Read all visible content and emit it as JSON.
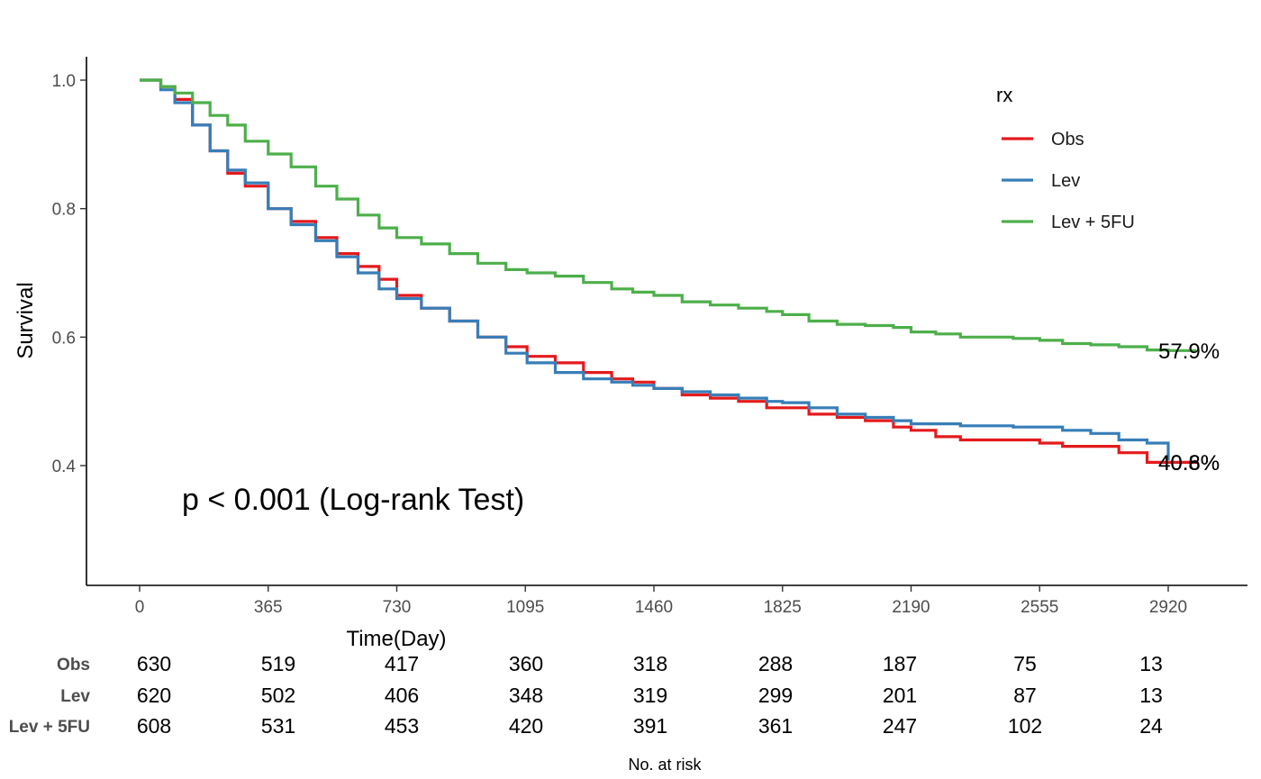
{
  "chart_data": {
    "type": "line",
    "xlabel": "Time(Day)",
    "ylabel": "Survival",
    "xlim": [
      0,
      3000
    ],
    "ylim": [
      0.22,
      1.03
    ],
    "x_ticks": [
      0,
      365,
      730,
      1095,
      1460,
      1825,
      2190,
      2555,
      2920
    ],
    "x_tick_labels": [
      "0",
      "365",
      "730",
      "1095",
      "1460",
      "1825",
      "2190",
      "2555",
      "2920"
    ],
    "y_ticks": [
      0.4,
      0.6,
      0.8,
      1.0
    ],
    "y_tick_labels": [
      "0.4",
      "0.6",
      "0.8",
      "1.0"
    ],
    "grid": false,
    "legend": {
      "title": "rx",
      "placement": "top-right",
      "entries": [
        "Obs",
        "Lev",
        "Lev + 5FU"
      ]
    },
    "annotation": "p < 0.001 (Log-rank Test)",
    "series": [
      {
        "name": "Obs",
        "color": "#E41A1C",
        "end_label": "40.6%",
        "x": [
          0,
          60,
          100,
          150,
          200,
          250,
          300,
          365,
          430,
          500,
          560,
          620,
          680,
          730,
          800,
          880,
          960,
          1040,
          1100,
          1180,
          1260,
          1340,
          1400,
          1460,
          1540,
          1620,
          1700,
          1780,
          1825,
          1900,
          1980,
          2060,
          2140,
          2190,
          2260,
          2330,
          2400,
          2480,
          2555,
          2620,
          2700,
          2780,
          2860,
          2920,
          3000
        ],
        "y": [
          1.0,
          0.99,
          0.97,
          0.93,
          0.89,
          0.855,
          0.835,
          0.8,
          0.78,
          0.755,
          0.73,
          0.71,
          0.69,
          0.665,
          0.645,
          0.625,
          0.6,
          0.585,
          0.57,
          0.56,
          0.545,
          0.535,
          0.53,
          0.52,
          0.51,
          0.505,
          0.5,
          0.49,
          0.49,
          0.48,
          0.475,
          0.47,
          0.46,
          0.455,
          0.445,
          0.44,
          0.44,
          0.44,
          0.435,
          0.43,
          0.43,
          0.42,
          0.405,
          0.405,
          0.405
        ]
      },
      {
        "name": "Lev",
        "color": "#377EB8",
        "end_label": "40.8%",
        "x": [
          0,
          60,
          100,
          150,
          200,
          250,
          300,
          365,
          430,
          500,
          560,
          620,
          680,
          730,
          800,
          880,
          960,
          1040,
          1100,
          1180,
          1260,
          1340,
          1400,
          1460,
          1540,
          1620,
          1700,
          1780,
          1825,
          1900,
          1980,
          2060,
          2140,
          2190,
          2260,
          2330,
          2400,
          2480,
          2555,
          2620,
          2700,
          2780,
          2860,
          2910,
          2920
        ],
        "y": [
          1.0,
          0.985,
          0.965,
          0.93,
          0.89,
          0.86,
          0.84,
          0.8,
          0.775,
          0.75,
          0.725,
          0.7,
          0.675,
          0.66,
          0.645,
          0.625,
          0.6,
          0.575,
          0.56,
          0.545,
          0.535,
          0.53,
          0.525,
          0.52,
          0.515,
          0.51,
          0.505,
          0.5,
          0.498,
          0.49,
          0.48,
          0.475,
          0.47,
          0.465,
          0.465,
          0.462,
          0.462,
          0.46,
          0.46,
          0.455,
          0.45,
          0.44,
          0.435,
          0.435,
          0.408
        ]
      },
      {
        "name": "Lev + 5FU",
        "color": "#4DAF4A",
        "end_label": "57.9%",
        "x": [
          0,
          60,
          100,
          150,
          200,
          250,
          300,
          365,
          430,
          500,
          560,
          620,
          680,
          730,
          800,
          880,
          960,
          1040,
          1100,
          1180,
          1260,
          1340,
          1400,
          1460,
          1540,
          1620,
          1700,
          1780,
          1825,
          1900,
          1980,
          2060,
          2140,
          2190,
          2260,
          2330,
          2400,
          2480,
          2555,
          2620,
          2700,
          2780,
          2860,
          2920,
          3000
        ],
        "y": [
          1.0,
          0.99,
          0.98,
          0.965,
          0.945,
          0.93,
          0.905,
          0.885,
          0.865,
          0.835,
          0.815,
          0.79,
          0.77,
          0.755,
          0.745,
          0.73,
          0.715,
          0.705,
          0.7,
          0.695,
          0.685,
          0.675,
          0.67,
          0.665,
          0.655,
          0.65,
          0.645,
          0.64,
          0.635,
          0.625,
          0.62,
          0.618,
          0.615,
          0.608,
          0.605,
          0.6,
          0.6,
          0.598,
          0.595,
          0.59,
          0.588,
          0.585,
          0.58,
          0.579,
          0.579
        ]
      }
    ],
    "risk_table": {
      "title": "No. at risk",
      "times": [
        0,
        365,
        730,
        1095,
        1460,
        1825,
        2190,
        2555,
        2920
      ],
      "rows": [
        {
          "name": "Obs",
          "values": [
            "630",
            "519",
            "417",
            "360",
            "318",
            "288",
            "187",
            "75",
            "13"
          ]
        },
        {
          "name": "Lev",
          "values": [
            "620",
            "502",
            "406",
            "348",
            "319",
            "299",
            "201",
            "87",
            "13"
          ]
        },
        {
          "name": "Lev + 5FU",
          "values": [
            "608",
            "531",
            "453",
            "420",
            "391",
            "361",
            "247",
            "102",
            "24"
          ]
        }
      ]
    }
  }
}
